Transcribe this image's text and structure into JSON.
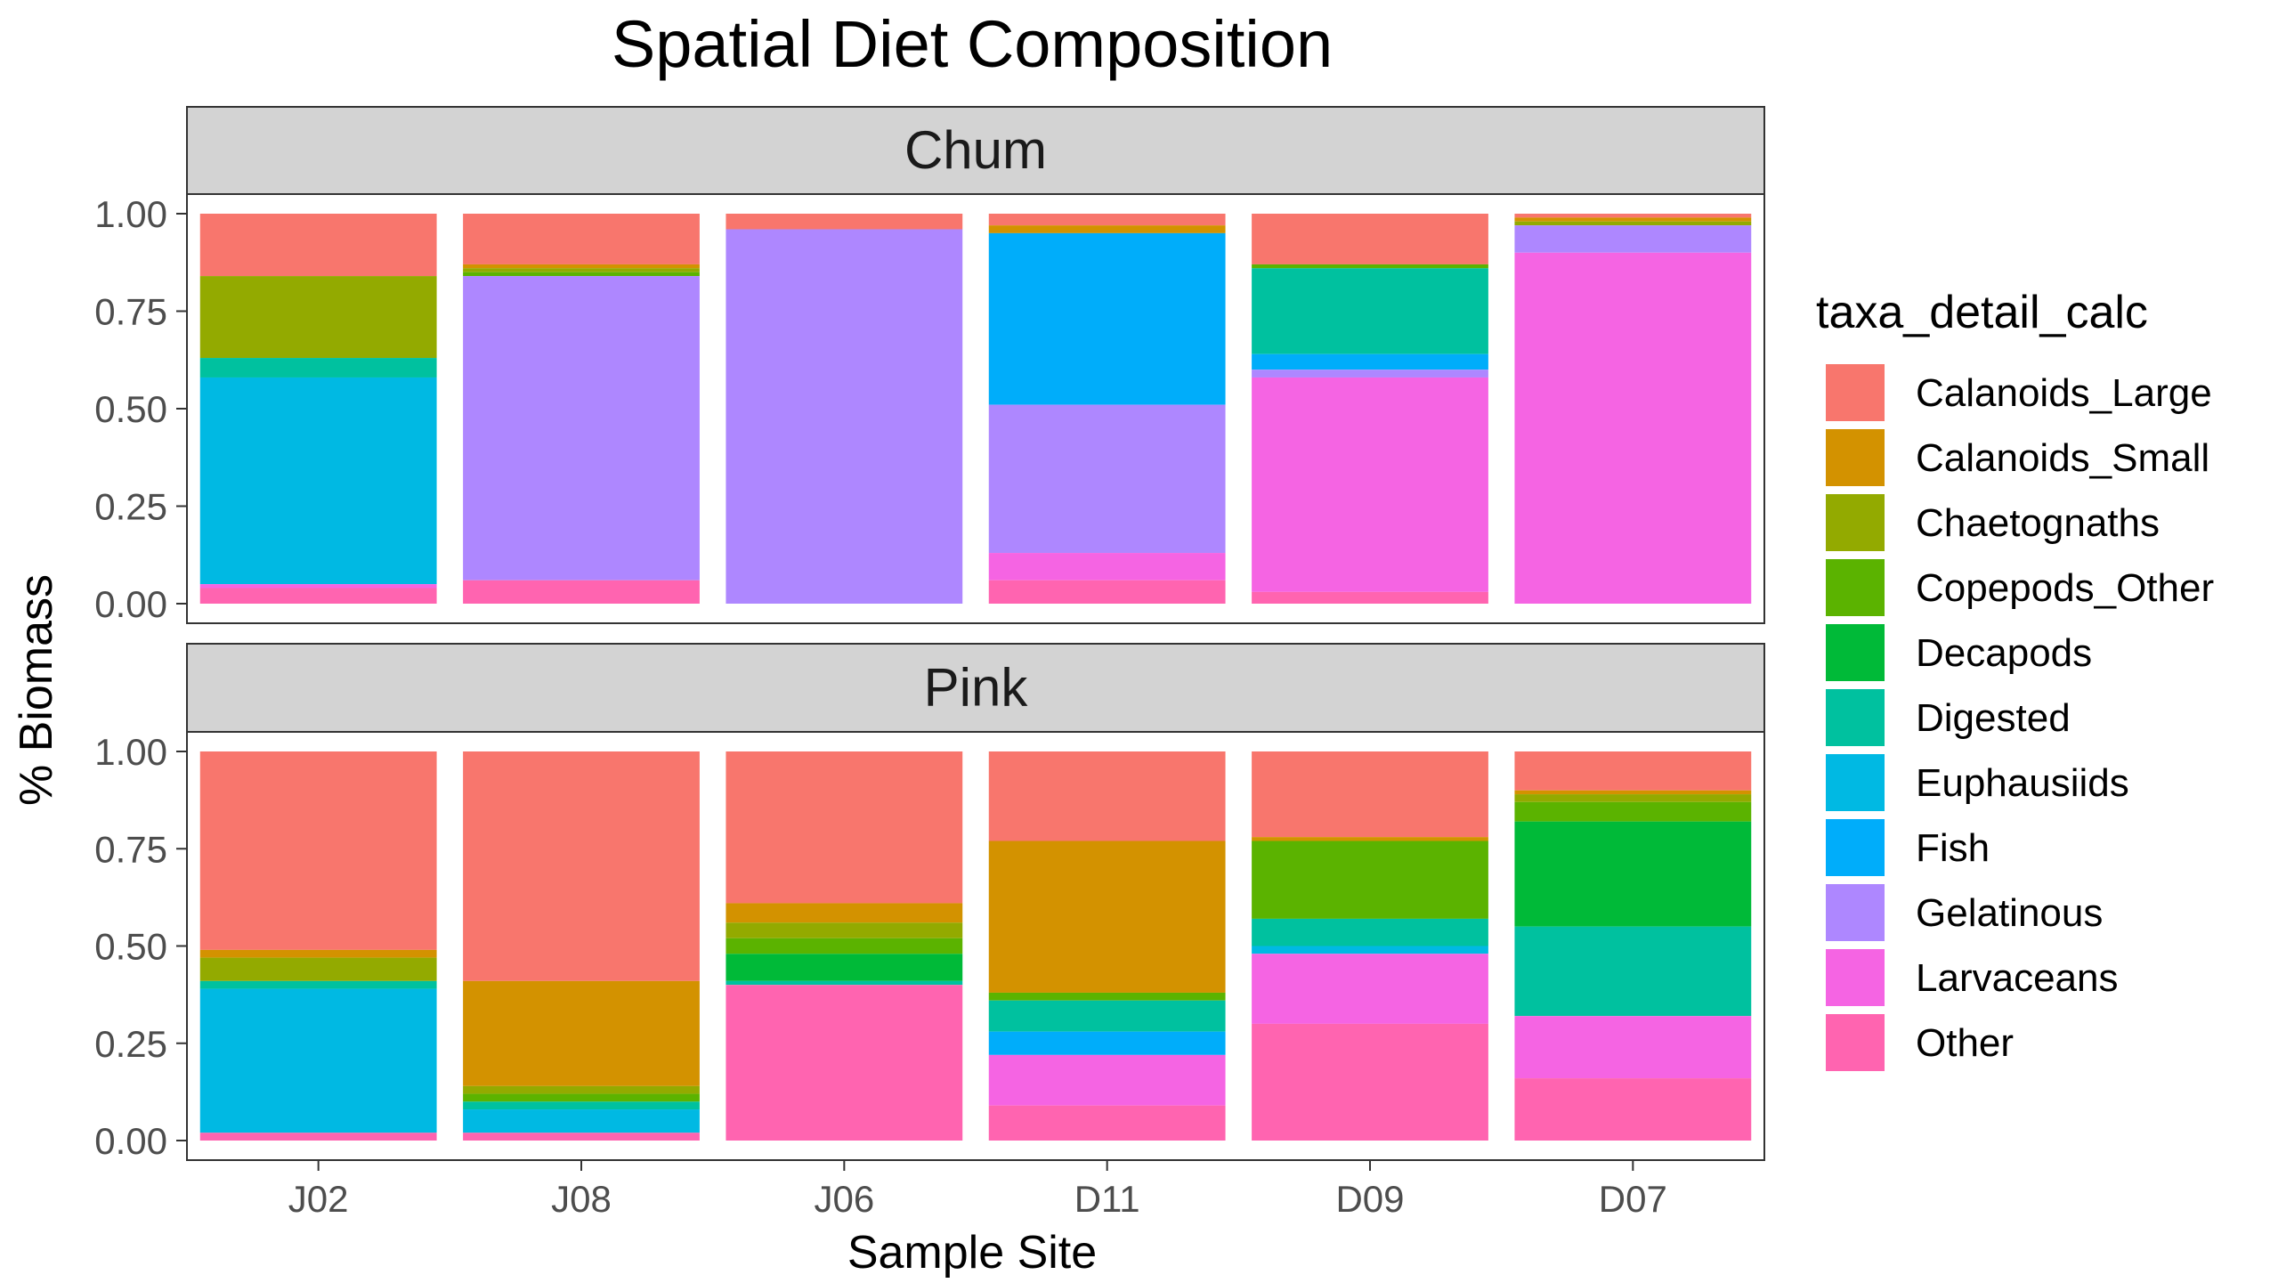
{
  "chart_data": {
    "type": "bar",
    "stacked": true,
    "title": "Spatial Diet Composition",
    "xlabel": "Sample Site",
    "ylabel": "% Biomass",
    "ylim": [
      0,
      1
    ],
    "yticks": [
      "0.00",
      "0.25",
      "0.50",
      "0.75",
      "1.00"
    ],
    "categories": [
      "J02",
      "J08",
      "J06",
      "D11",
      "D09",
      "D07"
    ],
    "legend": {
      "title": "taxa_detail_calc",
      "position": "right",
      "entries": [
        {
          "name": "Calanoids_Large",
          "color": "#F8766D"
        },
        {
          "name": "Calanoids_Small",
          "color": "#D39200"
        },
        {
          "name": "Chaetognaths",
          "color": "#93AA00"
        },
        {
          "name": "Copepods_Other",
          "color": "#5BB300"
        },
        {
          "name": "Decapods",
          "color": "#00BA38"
        },
        {
          "name": "Digested",
          "color": "#00C19F"
        },
        {
          "name": "Euphausiids",
          "color": "#00B9E3"
        },
        {
          "name": "Fish",
          "color": "#00ADFA"
        },
        {
          "name": "Gelatinous",
          "color": "#AE87FF"
        },
        {
          "name": "Larvaceans",
          "color": "#F564E3"
        },
        {
          "name": "Other",
          "color": "#FF64B0"
        }
      ]
    },
    "panels": [
      {
        "label": "Chum",
        "series": [
          {
            "name": "Calanoids_Large",
            "values": [
              0.16,
              0.13,
              0.04,
              0.03,
              0.13,
              0.01
            ]
          },
          {
            "name": "Calanoids_Small",
            "values": [
              0.0,
              0.01,
              0.0,
              0.02,
              0.0,
              0.01
            ]
          },
          {
            "name": "Chaetognaths",
            "values": [
              0.21,
              0.01,
              0.0,
              0.0,
              0.0,
              0.01
            ]
          },
          {
            "name": "Copepods_Other",
            "values": [
              0.0,
              0.01,
              0.0,
              0.0,
              0.01,
              0.0
            ]
          },
          {
            "name": "Decapods",
            "values": [
              0.0,
              0.0,
              0.0,
              0.0,
              0.0,
              0.0
            ]
          },
          {
            "name": "Digested",
            "values": [
              0.05,
              0.0,
              0.0,
              0.0,
              0.22,
              0.0
            ]
          },
          {
            "name": "Euphausiids",
            "values": [
              0.53,
              0.0,
              0.0,
              0.0,
              0.0,
              0.0
            ]
          },
          {
            "name": "Fish",
            "values": [
              0.0,
              0.0,
              0.0,
              0.44,
              0.04,
              0.0
            ]
          },
          {
            "name": "Gelatinous",
            "values": [
              0.0,
              0.78,
              0.96,
              0.38,
              0.02,
              0.07
            ]
          },
          {
            "name": "Larvaceans",
            "values": [
              0.01,
              0.0,
              0.0,
              0.07,
              0.55,
              0.9
            ]
          },
          {
            "name": "Other",
            "values": [
              0.04,
              0.06,
              0.0,
              0.06,
              0.03,
              0.0
            ]
          }
        ]
      },
      {
        "label": "Pink",
        "series": [
          {
            "name": "Calanoids_Large",
            "values": [
              0.51,
              0.59,
              0.39,
              0.23,
              0.22,
              0.1
            ]
          },
          {
            "name": "Calanoids_Small",
            "values": [
              0.02,
              0.27,
              0.05,
              0.39,
              0.01,
              0.01
            ]
          },
          {
            "name": "Chaetognaths",
            "values": [
              0.06,
              0.02,
              0.04,
              0.0,
              0.0,
              0.02
            ]
          },
          {
            "name": "Copepods_Other",
            "values": [
              0.0,
              0.02,
              0.04,
              0.02,
              0.2,
              0.05
            ]
          },
          {
            "name": "Decapods",
            "values": [
              0.0,
              0.0,
              0.07,
              0.0,
              0.0,
              0.27
            ]
          },
          {
            "name": "Digested",
            "values": [
              0.02,
              0.02,
              0.01,
              0.08,
              0.07,
              0.23
            ]
          },
          {
            "name": "Euphausiids",
            "values": [
              0.37,
              0.06,
              0.0,
              0.0,
              0.02,
              0.0
            ]
          },
          {
            "name": "Fish",
            "values": [
              0.0,
              0.0,
              0.0,
              0.06,
              0.0,
              0.0
            ]
          },
          {
            "name": "Gelatinous",
            "values": [
              0.0,
              0.0,
              0.0,
              0.0,
              0.0,
              0.0
            ]
          },
          {
            "name": "Larvaceans",
            "values": [
              0.0,
              0.0,
              0.0,
              0.13,
              0.18,
              0.16
            ]
          },
          {
            "name": "Other",
            "values": [
              0.02,
              0.02,
              0.4,
              0.09,
              0.3,
              0.16
            ]
          }
        ]
      }
    ]
  }
}
